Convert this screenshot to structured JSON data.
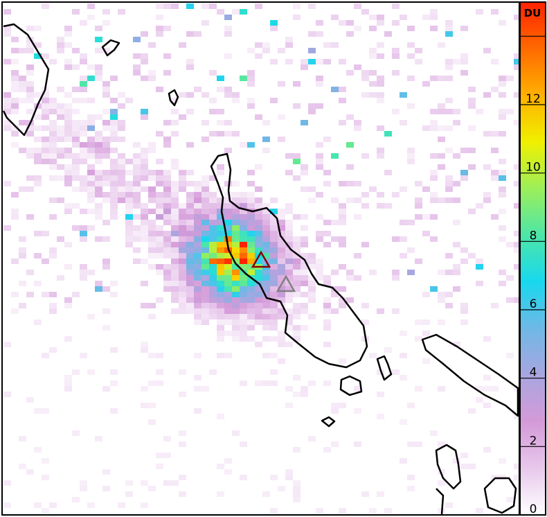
{
  "colorbar": {
    "unit_label": "DU",
    "min": 0,
    "max": 15,
    "ticks": [
      0,
      2,
      4,
      6,
      8,
      10,
      12,
      14
    ],
    "tick_labels": [
      "0",
      "2",
      "4",
      "6",
      "8",
      "10",
      "12",
      ""
    ],
    "colors": [
      "#ffffff",
      "#e8c8ec",
      "#d49ad8",
      "#a9a6e0",
      "#6fb8e6",
      "#18d8ee",
      "#4de6a8",
      "#9cef5a",
      "#f0f000",
      "#ffb000",
      "#ff6a00",
      "#ff2200"
    ]
  },
  "markers": [
    {
      "name": "volcano-active",
      "color": "#8b0000"
    },
    {
      "name": "volcano-other",
      "color": "#808080"
    }
  ]
}
